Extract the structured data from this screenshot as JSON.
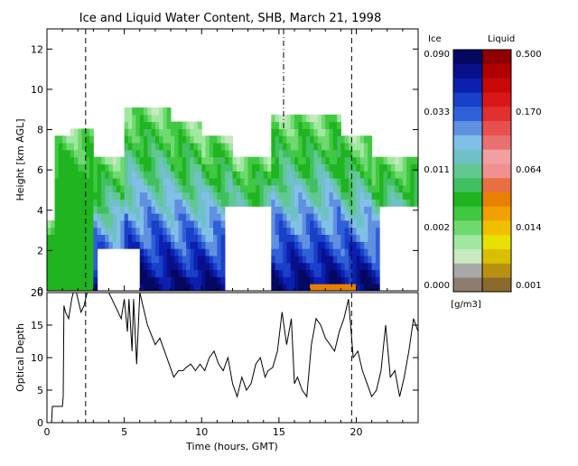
{
  "chart_data": [
    {
      "type": "heatmap",
      "title": "Ice and Liquid Water Content, SHB, March 21, 1998",
      "xlabel": "",
      "ylabel": "Height [km AGL]",
      "xlim": [
        0,
        24
      ],
      "ylim": [
        0,
        13
      ],
      "yticks": [
        0,
        2,
        4,
        6,
        8,
        10,
        12
      ],
      "colorbar": {
        "ice_label": "Ice",
        "liquid_label": "Liquid",
        "units": "[g/m3]",
        "ice_ticks": [
          "0.090",
          "0.033",
          "0.011",
          "0.002",
          "0.000"
        ],
        "liquid_ticks": [
          "0.500",
          "0.170",
          "0.064",
          "0.014",
          "0.001"
        ],
        "ice_colors": [
          "#8c7d6e",
          "#a8a8a8",
          "#c8e8c0",
          "#a0e8a0",
          "#70d870",
          "#40c840",
          "#20b420",
          "#40c060",
          "#60c890",
          "#70c0c8",
          "#80c0e8",
          "#6090e0",
          "#3060d8",
          "#1840c8",
          "#0c20b0",
          "#08108c",
          "#040860"
        ],
        "liquid_colors": [
          "#8c6a2c",
          "#b89010",
          "#d8c000",
          "#e8e000",
          "#f0c000",
          "#f0a000",
          "#e88000",
          "#e87040",
          "#f09090",
          "#f0a0a0",
          "#e87070",
          "#e85050",
          "#e03030",
          "#d81818",
          "#c80808",
          "#b00000",
          "#900000"
        ]
      },
      "clear_gaps_hours": [
        [
          3.5,
          6.0
        ],
        [
          11.5,
          14.5
        ],
        [
          21.5,
          24.0
        ]
      ],
      "grid": false
    },
    {
      "type": "line",
      "xlabel": "Time (hours, GMT)",
      "ylabel": "Optical Depth",
      "xlim": [
        0,
        24
      ],
      "ylim": [
        0,
        20
      ],
      "xticks": [
        0,
        5,
        10,
        15,
        20
      ],
      "yticks": [
        0,
        5,
        10,
        15,
        20
      ],
      "grid": false,
      "series": [
        {
          "x": [
            0,
            0.3,
            0.35,
            1.0,
            1.05,
            1.1,
            1.2,
            1.4,
            1.6,
            1.8,
            2.0,
            2.2,
            2.4,
            2.6,
            3.0,
            4.0,
            4.8,
            5.0,
            5.2,
            5.3,
            5.5,
            5.6,
            5.8,
            6.0,
            6.5,
            7.0,
            7.3,
            7.6,
            7.9,
            8.2,
            8.5,
            8.8,
            9.0,
            9.3,
            9.6,
            9.9,
            10.2,
            10.5,
            10.8,
            11.1,
            11.4,
            11.7,
            12.0,
            12.3,
            12.6,
            12.9,
            13.2,
            13.5,
            13.8,
            14.1,
            14.3,
            14.6,
            14.9,
            15.2,
            15.5,
            15.8,
            16.0,
            16.2,
            16.5,
            16.8,
            17.1,
            17.4,
            17.7,
            18.0,
            18.3,
            18.6,
            18.9,
            19.2,
            19.5,
            19.8,
            20.1,
            20.4,
            20.7,
            21.0,
            21.3,
            21.6,
            21.9,
            22.2,
            22.5,
            22.8,
            23.1,
            23.4,
            23.7,
            24.0
          ],
          "y": [
            0,
            0,
            2.5,
            2.5,
            4,
            18,
            17,
            16,
            19,
            21,
            19,
            17,
            18,
            20,
            20,
            20,
            16,
            19,
            14,
            19,
            11,
            19,
            9,
            20,
            15,
            12,
            13,
            11,
            9,
            7,
            8,
            8,
            8.5,
            9,
            8,
            9,
            8,
            10,
            11,
            9,
            8,
            10,
            6,
            4,
            7,
            5,
            6,
            9,
            10,
            7,
            8,
            8.5,
            11,
            17,
            12,
            16,
            6,
            7,
            5,
            4,
            12,
            16,
            15,
            13,
            12,
            11,
            14,
            16,
            19,
            10,
            11,
            8,
            6,
            4,
            5,
            8,
            15,
            7,
            8,
            4,
            7,
            11,
            16,
            14
          ]
        }
      ],
      "annotations": [
        "vertical dashed lines at ~2.5 h and ~19.7 h"
      ]
    }
  ]
}
